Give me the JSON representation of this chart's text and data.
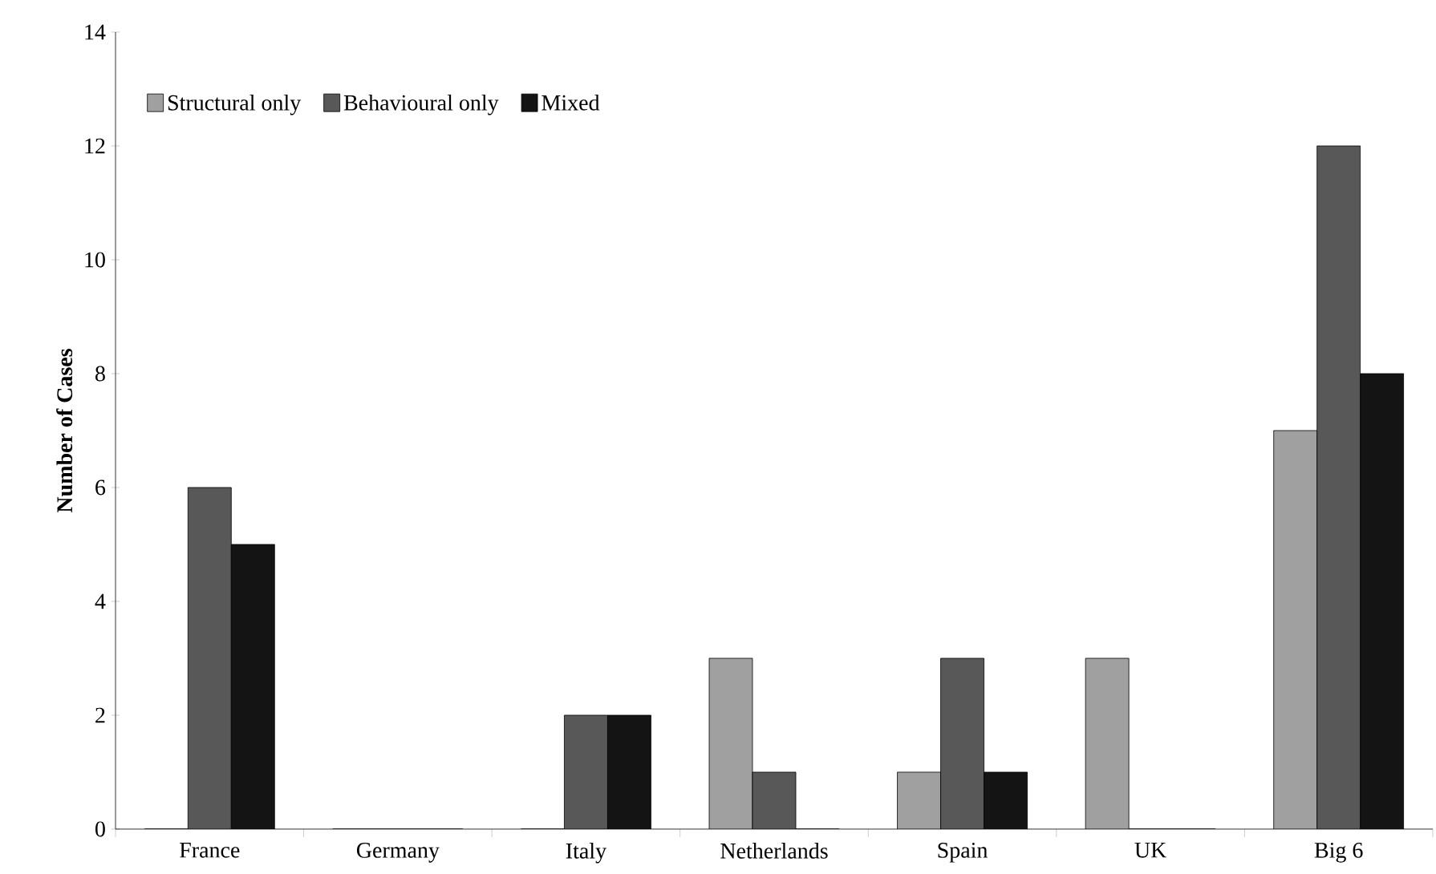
{
  "chart_data": {
    "type": "bar",
    "ylabel": "Number of Cases",
    "categories": [
      "France",
      "Germany",
      "Italy",
      "Netherlands",
      "Spain",
      "UK",
      "Big 6"
    ],
    "series": [
      {
        "name": "Structural only",
        "color": "#a0a0a0",
        "values": [
          0,
          0,
          0,
          3,
          1,
          3,
          7
        ]
      },
      {
        "name": "Behavioural only",
        "color": "#585858",
        "values": [
          6,
          0,
          2,
          1,
          3,
          0,
          12
        ]
      },
      {
        "name": "Mixed",
        "color": "#141414",
        "values": [
          5,
          0,
          2,
          0,
          1,
          0,
          8
        ]
      }
    ],
    "ylim": [
      0,
      14
    ],
    "yticks": [
      0,
      2,
      4,
      6,
      8,
      10,
      12,
      14
    ],
    "grid": false,
    "legend": "top left"
  }
}
